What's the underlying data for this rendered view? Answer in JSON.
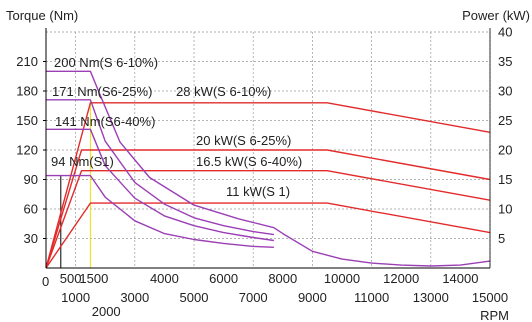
{
  "chart_data": {
    "type": "line",
    "left_axis": {
      "label": "Torque (Nm)",
      "range": [
        0,
        240
      ],
      "ticks": [
        "30",
        "60",
        "90",
        "120",
        "150",
        "180",
        "210"
      ]
    },
    "right_axis": {
      "label": "Power (kW)",
      "range": [
        0,
        40
      ],
      "ticks": [
        "5",
        "10",
        "15",
        "20",
        "25",
        "30",
        "35",
        "40"
      ]
    },
    "x_axis": {
      "label": "RPM",
      "range": [
        0,
        15000
      ],
      "ticks_upper": [
        "500",
        "1500",
        "4000",
        "6000",
        "8000",
        "10000",
        "12000",
        "14000"
      ],
      "ticks_lower": [
        "0",
        "1000",
        "3000",
        "5000",
        "7000",
        "9000",
        "11000",
        "13000",
        "15000"
      ],
      "ticks_extra": [
        "2000"
      ]
    },
    "grid": true,
    "colors": {
      "torque": "#9b3fb5",
      "power": "#e32b2b",
      "axis": "#000000",
      "grid": "#999999",
      "marker": "#f0e000"
    },
    "series": [
      {
        "name": "200 Nm(S 6-10%)",
        "axis": "torque",
        "points": [
          [
            0,
            200
          ],
          [
            1500,
            200
          ],
          [
            1800,
            178
          ],
          [
            2500,
            128
          ],
          [
            3500,
            92
          ],
          [
            5000,
            64
          ],
          [
            6500,
            50
          ],
          [
            7700,
            41
          ],
          [
            8000,
            35
          ],
          [
            9000,
            17
          ],
          [
            10000,
            9
          ],
          [
            11000,
            5
          ],
          [
            12000,
            3
          ],
          [
            13000,
            2
          ],
          [
            14000,
            3
          ],
          [
            15000,
            7
          ]
        ]
      },
      {
        "name": "171 Nm(S6-25%)",
        "axis": "torque",
        "points": [
          [
            0,
            171
          ],
          [
            1500,
            171
          ],
          [
            2000,
            129
          ],
          [
            3000,
            87
          ],
          [
            4000,
            65
          ],
          [
            5000,
            51
          ],
          [
            6000,
            43
          ],
          [
            7000,
            37
          ],
          [
            7700,
            34
          ]
        ]
      },
      {
        "name": "141 Nm(S6-40%)",
        "axis": "torque",
        "points": [
          [
            0,
            141
          ],
          [
            1500,
            141
          ],
          [
            2000,
            104
          ],
          [
            3000,
            71
          ],
          [
            4000,
            53
          ],
          [
            5000,
            43
          ],
          [
            6000,
            36
          ],
          [
            7000,
            31
          ],
          [
            7700,
            28
          ]
        ]
      },
      {
        "name": "94 Nm(S1)",
        "axis": "torque",
        "points": [
          [
            0,
            94
          ],
          [
            1500,
            94
          ],
          [
            2000,
            72
          ],
          [
            3000,
            48
          ],
          [
            4000,
            35
          ],
          [
            5000,
            29
          ],
          [
            6000,
            25
          ],
          [
            7000,
            22
          ],
          [
            7700,
            21
          ]
        ]
      },
      {
        "name": "28 kW(S 6-10%)",
        "axis": "power",
        "points": [
          [
            0,
            0
          ],
          [
            1500,
            28
          ],
          [
            9500,
            28
          ],
          [
            15000,
            23
          ]
        ]
      },
      {
        "name": "20 kW(S 6-25%)",
        "axis": "power",
        "points": [
          [
            0,
            0
          ],
          [
            1200,
            20
          ],
          [
            9500,
            20
          ],
          [
            15000,
            15
          ]
        ]
      },
      {
        "name": "16.5 kW(S 6-40%)",
        "axis": "power",
        "points": [
          [
            0,
            0
          ],
          [
            1200,
            16.5
          ],
          [
            9500,
            16.5
          ],
          [
            15000,
            11.5
          ]
        ]
      },
      {
        "name": "11 kW(S 1)",
        "axis": "power",
        "points": [
          [
            0,
            0
          ],
          [
            1500,
            11
          ],
          [
            9500,
            11
          ],
          [
            15000,
            6
          ]
        ]
      }
    ],
    "reference_lines": [
      {
        "x": 500,
        "from_torque": 0,
        "to_torque": 94,
        "color": "black"
      },
      {
        "x": 1500,
        "from_torque": 0,
        "to_torque": 171,
        "color": "yellow"
      }
    ]
  }
}
